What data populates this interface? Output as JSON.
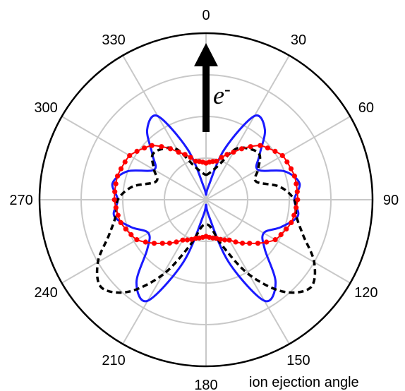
{
  "chart_data": {
    "type": "polar-line",
    "angle_ticks": [
      "0",
      "30",
      "60",
      "90",
      "120",
      "150",
      "180",
      "210",
      "240",
      "270",
      "300",
      "330"
    ],
    "angle_title": "ion ejection angle",
    "annotation": {
      "text": "e",
      "superscript": "-"
    },
    "grid": true,
    "r_gridlines": [
      0.25,
      0.5,
      0.75,
      1.0
    ],
    "rmax": 1.0,
    "colors": {
      "blue": "#1a1aff",
      "black": "#000000",
      "red": "#ff0000",
      "grid": "#c8c8c8"
    },
    "series": [
      {
        "style": "blue-solid",
        "angles": [
          0,
          10,
          20,
          30,
          40,
          50,
          60,
          70,
          80,
          90,
          100,
          110,
          120,
          130,
          140,
          150,
          160,
          170,
          180
        ],
        "r": [
          0.03,
          0.08,
          0.32,
          0.58,
          0.55,
          0.42,
          0.36,
          0.5,
          0.57,
          0.53,
          0.56,
          0.48,
          0.4,
          0.46,
          0.65,
          0.7,
          0.4,
          0.1,
          0.03
        ]
      },
      {
        "style": "black-dashed",
        "angles": [
          0,
          10,
          20,
          30,
          40,
          50,
          60,
          70,
          80,
          90,
          100,
          110,
          120,
          130,
          140,
          150,
          160,
          170,
          180
        ],
        "r": [
          0.15,
          0.17,
          0.22,
          0.35,
          0.4,
          0.42,
          0.36,
          0.32,
          0.45,
          0.53,
          0.55,
          0.62,
          0.75,
          0.82,
          0.72,
          0.52,
          0.3,
          0.17,
          0.15
        ]
      },
      {
        "style": "red-dotted-markers",
        "angles": [
          0,
          15,
          30,
          45,
          60,
          75,
          90,
          105,
          120,
          135,
          150,
          165,
          180
        ],
        "r": [
          0.22,
          0.24,
          0.33,
          0.46,
          0.53,
          0.55,
          0.55,
          0.53,
          0.48,
          0.37,
          0.28,
          0.24,
          0.22
        ]
      }
    ]
  }
}
